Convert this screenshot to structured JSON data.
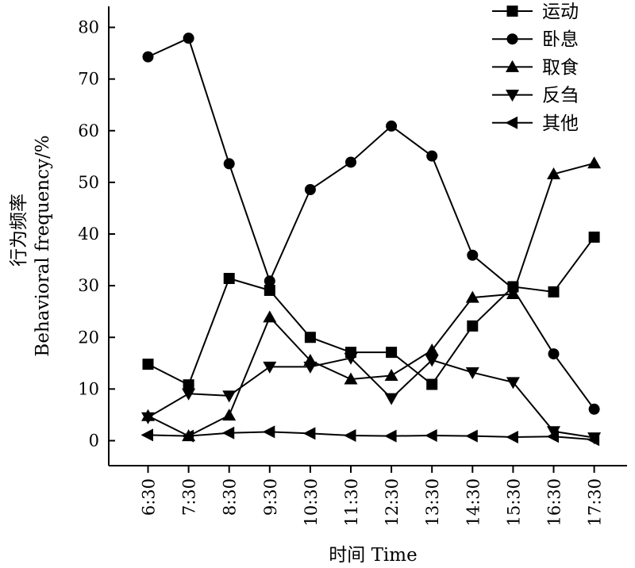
{
  "chart_data": {
    "type": "line",
    "xlabel": "时间 Time",
    "ylabel_line1": "行为频率",
    "ylabel_line2": "Behavioral frequency/%",
    "categories": [
      "6:30",
      "7:30",
      "8:30",
      "9:30",
      "10:30",
      "11:30",
      "12:30",
      "13:30",
      "14:30",
      "15:30",
      "16:30",
      "17:30"
    ],
    "ylim": [
      0,
      85
    ],
    "yticks": [
      0,
      10,
      20,
      30,
      40,
      50,
      60,
      70,
      80
    ],
    "grid": false,
    "legend_position": "top-right",
    "series": [
      {
        "name": "运动",
        "marker": "square",
        "values": [
          14.8,
          10.8,
          31.4,
          29.1,
          20.0,
          17.1,
          17.1,
          10.9,
          22.2,
          29.8,
          28.8,
          39.4
        ]
      },
      {
        "name": "卧息",
        "marker": "circle",
        "values": [
          74.3,
          77.9,
          53.6,
          30.9,
          48.6,
          53.9,
          60.9,
          55.1,
          35.9,
          29.4,
          16.8,
          6.1
        ]
      },
      {
        "name": "取食",
        "marker": "triangle-up",
        "values": [
          4.8,
          0.9,
          4.9,
          23.9,
          15.5,
          11.9,
          12.6,
          17.5,
          27.7,
          28.4,
          51.6,
          53.7
        ]
      },
      {
        "name": "反刍",
        "marker": "triangle-down",
        "values": [
          4.5,
          9.1,
          8.7,
          14.3,
          14.3,
          16.0,
          8.2,
          15.6,
          13.2,
          11.3,
          1.8,
          0.6
        ]
      },
      {
        "name": "其他",
        "marker": "triangle-left",
        "values": [
          1.1,
          0.9,
          1.5,
          1.7,
          1.4,
          1.0,
          0.9,
          1.0,
          0.9,
          0.7,
          0.8,
          0.2
        ]
      }
    ]
  }
}
